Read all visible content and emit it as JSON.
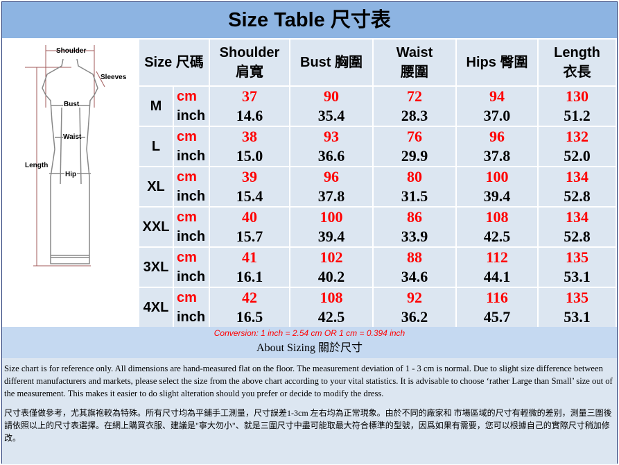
{
  "title": "Size Table 尺寸表",
  "diagram": {
    "labels": {
      "shoulder": "Shoulder",
      "sleeves": "Sleeves",
      "bust": "Bust",
      "waist": "Waist",
      "length": "Length",
      "hip": "Hip"
    }
  },
  "table": {
    "headers": {
      "size": "Size 尺碼",
      "shoulder": [
        "Shoulder",
        "肩寬"
      ],
      "bust": "Bust  胸圍",
      "waist": [
        "Waist",
        "腰圍"
      ],
      "hips": "Hips  臀圍",
      "length": [
        "Length",
        "衣長"
      ]
    },
    "unit_cm": "cm",
    "unit_inch": "inch",
    "rows": [
      {
        "size": "M",
        "cm": [
          "37",
          "90",
          "72",
          "94",
          "130"
        ],
        "inch": [
          "14.6",
          "35.4",
          "28.3",
          "37.0",
          "51.2"
        ]
      },
      {
        "size": "L",
        "cm": [
          "38",
          "93",
          "76",
          "96",
          "132"
        ],
        "inch": [
          "15.0",
          "36.6",
          "29.9",
          "37.8",
          "52.0"
        ]
      },
      {
        "size": "XL",
        "cm": [
          "39",
          "96",
          "80",
          "100",
          "134"
        ],
        "inch": [
          "15.4",
          "37.8",
          "31.5",
          "39.4",
          "52.8"
        ]
      },
      {
        "size": "XXL",
        "cm": [
          "40",
          "100",
          "86",
          "108",
          "134"
        ],
        "inch": [
          "15.7",
          "39.4",
          "33.9",
          "42.5",
          "52.8"
        ]
      },
      {
        "size": "3XL",
        "cm": [
          "41",
          "102",
          "88",
          "112",
          "135"
        ],
        "inch": [
          "16.1",
          "40.2",
          "34.6",
          "44.1",
          "53.1"
        ]
      },
      {
        "size": "4XL",
        "cm": [
          "42",
          "108",
          "92",
          "116",
          "135"
        ],
        "inch": [
          "16.5",
          "42.5",
          "36.2",
          "45.7",
          "53.1"
        ]
      }
    ]
  },
  "conversion": "Conversion: 1 inch = 2.54 cm OR 1 cm = 0.394 inch",
  "about_title": "About Sizing 關於尺寸",
  "note_en": "Size chart is for reference only. All dimensions are hand-measured flat on the floor. The measurement deviation of 1 - 3 cm is normal. Due to slight size difference between different manufacturers and markets, please select the size from the above chart according to your vital statistics. It is advisable to choose ‘rather Large than Small’ size out of the measurement. This makes it easier to do slight alteration should you prefer or decide to modify the dress.",
  "note_zh": "尺寸表僅做參考，尤其旗袍較為特殊。所有尺寸均為平鋪手工測量，尺寸誤差1-3cm 左右均為正常現象。由於不同的廠家和 市場區域的尺寸有輕微的差别，測量三圍後請依照以上的尺寸表選擇。在網上購買衣服、建議是\"寧大勿小\"、就是三圍尺寸中盡可能取最大符合標準的型號，因爲如果有需要，您可以根據自己的實際尺寸稍加修改。",
  "colors": {
    "title_bg": "#8DB4E2",
    "cell_bg": "#DCE6F1",
    "cm_text": "#FF0000"
  }
}
